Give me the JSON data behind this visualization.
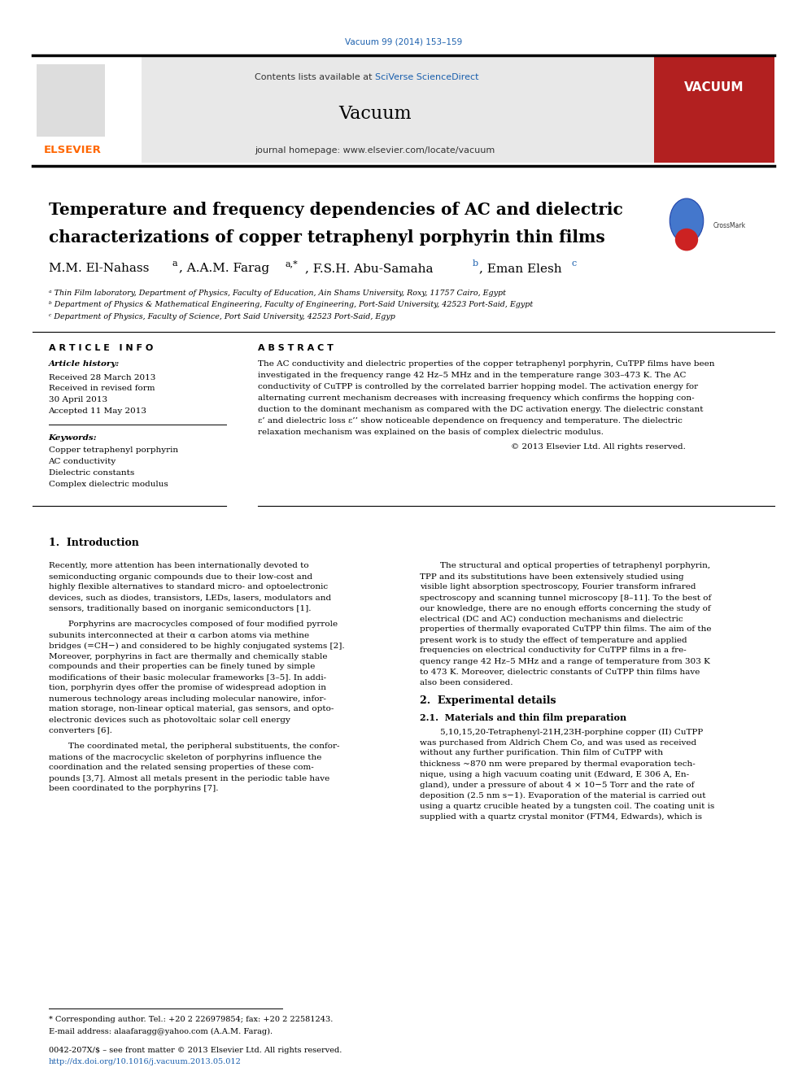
{
  "page_width": 9.92,
  "page_height": 13.23,
  "bg_color": "#ffffff",
  "journal_ref": "Vacuum 99 (2014) 153–159",
  "journal_ref_color": "#1a5fad",
  "header_bg": "#e8e8e8",
  "header_text_contents": "Contents lists available at ",
  "header_text_sciverse": "SciVerse ScienceDirect",
  "header_journal_name": "Vacuum",
  "header_homepage": "journal homepage: www.elsevier.com/locate/vacuum",
  "elsevier_color": "#ff6600",
  "vacuum_cover_bg": "#b22020",
  "vacuum_cover_text": "VACUUM",
  "title_line1": "Temperature and frequency dependencies of AC and dielectric",
  "title_line2": "characterizations of copper tetraphenyl porphyrin thin films",
  "affil_a": "ᵃ Thin Film laboratory, Department of Physics, Faculty of Education, Ain Shams University, Roxy, 11757 Cairo, Egypt",
  "affil_b": "ᵇ Department of Physics & Mathematical Engineering, Faculty of Engineering, Port-Said University, 42523 Port-Said, Egypt",
  "affil_c": "ᶜ Department of Physics, Faculty of Science, Port Said University, 42523 Port-Said, Egyp",
  "section_article_info": "A R T I C L E   I N F O",
  "section_abstract": "A B S T R A C T",
  "article_history_header": "Article history:",
  "received1": "Received 28 March 2013",
  "received2": "Received in revised form",
  "received2b": "30 April 2013",
  "accepted": "Accepted 11 May 2013",
  "keywords_header": "Keywords:",
  "keyword1": "Copper tetraphenyl porphyrin",
  "keyword2": "AC conductivity",
  "keyword3": "Dielectric constants",
  "keyword4": "Complex dielectric modulus",
  "abstract_text": "The AC conductivity and dielectric properties of the copper tetraphenyl porphyrin, CuTPP films have been\ninvestigated in the frequency range 42 Hz–5 MHz and in the temperature range 303–473 K. The AC\nconductivity of CuTPP is controlled by the correlated barrier hopping model. The activation energy for\nalternating current mechanism decreases with increasing frequency which confirms the hopping con-\nduction to the dominant mechanism as compared with the DC activation energy. The dielectric constant\nε’ and dielectric loss ε’’ show noticeable dependence on frequency and temperature. The dielectric\nrelaxation mechanism was explained on the basis of complex dielectric modulus.",
  "copyright": "© 2013 Elsevier Ltd. All rights reserved.",
  "section1_header": "1.  Introduction",
  "intro_col1_para1": "Recently, more attention has been internationally devoted to\nsemiconducting organic compounds due to their low-cost and\nhighly flexible alternatives to standard micro- and optoelectronic\ndevices, such as diodes, transistors, LEDs, lasers, modulators and\nsensors, traditionally based on inorganic semiconductors [1].",
  "intro_col1_para2": "Porphyrins are macrocycles composed of four modified pyrrole\nsubunits interconnected at their α carbon atoms via methine\nbridges (=CH−) and considered to be highly conjugated systems [2].\nMoreover, porphyrins in fact are thermally and chemically stable\ncompounds and their properties can be finely tuned by simple\nmodifications of their basic molecular frameworks [3–5]. In addi-\ntion, porphyrin dyes offer the promise of widespread adoption in\nnumerous technology areas including molecular nanowire, infor-\nmation storage, non-linear optical material, gas sensors, and opto-\nelectronic devices such as photovoltaic solar cell energy\nconverters [6].",
  "intro_col1_para3": "The coordinated metal, the peripheral substituents, the confor-\nmations of the macrocyclic skeleton of porphyrins influence the\ncoordination and the related sensing properties of these com-\npounds [3,7]. Almost all metals present in the periodic table have\nbeen coordinated to the porphyrins [7].",
  "intro_col2_para1": "The structural and optical properties of tetraphenyl porphyrin,\nTPP and its substitutions have been extensively studied using\nvisible light absorption spectroscopy, Fourier transform infrared\nspectroscopy and scanning tunnel microscopy [8–11]. To the best of\nour knowledge, there are no enough efforts concerning the study of\nelectrical (DC and AC) conduction mechanisms and dielectric\nproperties of thermally evaporated CuTPP thin films. The aim of the\npresent work is to study the effect of temperature and applied\nfrequencies on electrical conductivity for CuTPP films in a fre-\nquency range 42 Hz–5 MHz and a range of temperature from 303 K\nto 473 K. Moreover, dielectric constants of CuTPP thin films have\nalso been considered.",
  "section2_header": "2.  Experimental details",
  "section21_header": "2.1.  Materials and thin film preparation",
  "exp_col2_text": "5,10,15,20-Tetraphenyl-21H,23H-porphine copper (II) CuTPP\nwas purchased from Aldrich Chem Co, and was used as received\nwithout any further purification. Thin film of CuTPP with\nthickness ~870 nm were prepared by thermal evaporation tech-\nnique, using a high vacuum coating unit (Edward, E 306 A, En-\ngland), under a pressure of about 4 × 10−5 Torr and the rate of\ndeposition (2.5 nm s−1). Evaporation of the material is carried out\nusing a quartz crucible heated by a tungsten coil. The coating unit is\nsupplied with a quartz crystal monitor (FTM4, Edwards), which is",
  "footnote_star": "* Corresponding author. Tel.: +20 2 226979854; fax: +20 2 22581243.",
  "footnote_email": "E-mail address: alaafaragg@yahoo.com (A.A.M. Farag).",
  "footer_issn": "0042-207X/$ – see front matter © 2013 Elsevier Ltd. All rights reserved.",
  "footer_doi": "http://dx.doi.org/10.1016/j.vacuum.2013.05.012"
}
